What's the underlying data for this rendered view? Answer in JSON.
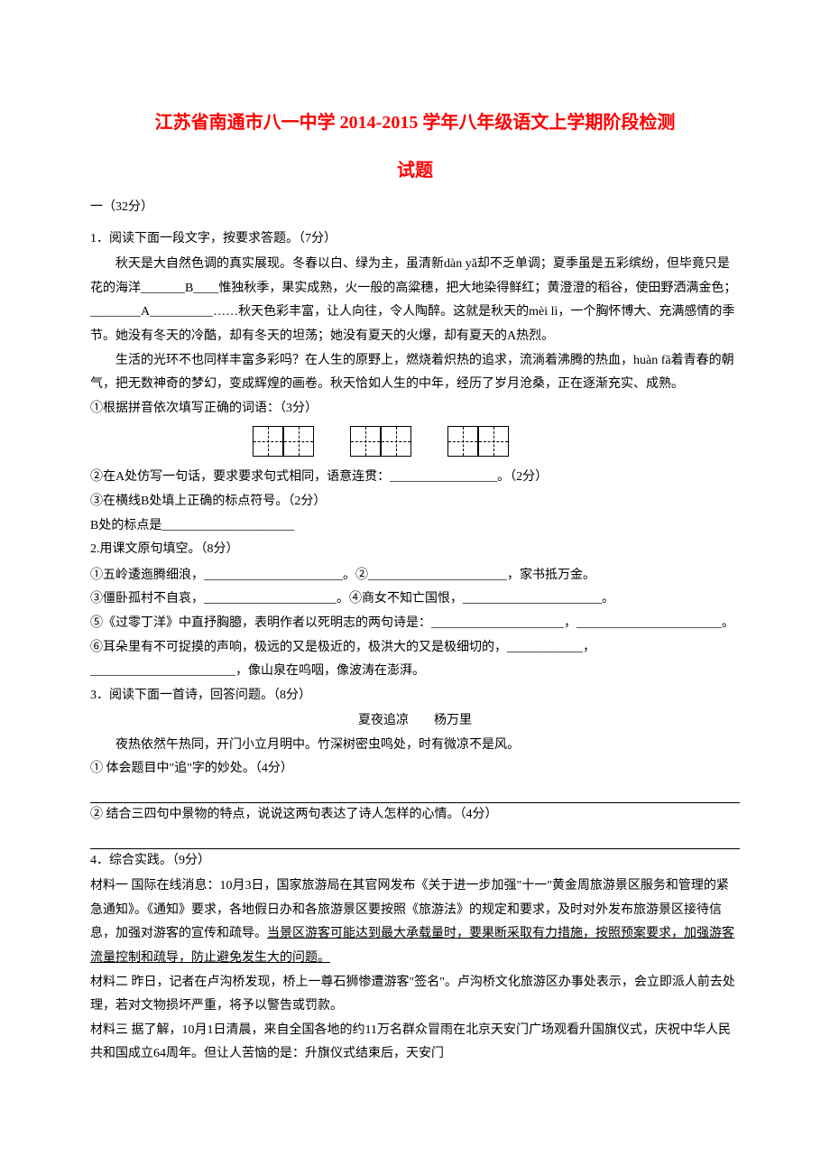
{
  "colors": {
    "title_color": "#ff0000",
    "text_color": "#000000",
    "background_color": "#ffffff"
  },
  "typography": {
    "title_fontsize": 20,
    "body_fontsize": 14,
    "line_height": 1.9,
    "font_family": "SimSun"
  },
  "title_line1": "江苏省南通市八一中学 2014-2015 学年八年级语文上学期阶段检测",
  "title_line2": "试题",
  "section1": {
    "header": "一（32分）",
    "q1": {
      "stem": "1．阅读下面一段文字，按要求答题。（7分）",
      "p1": "秋天是大自然色调的真实展现。冬春以白、绿为主，虽清新dàn yǎ却不乏单调；夏季虽是五彩缤纷，但毕竟只是花的海洋_______B____惟独秋季，果实成熟，火一般的高粱穗，把大地染得鲜红；黄澄澄的稻谷，使田野洒满金色；________A__________……秋天色彩丰富，让人向往，令人陶醉。这就是秋天的mèi lì，一个胸怀博大、充满感情的季节。她没有冬天的冷酷，却有冬天的坦荡；她没有夏天的火爆，却有夏天的A热烈。",
      "p2": "生活的光环不也同样丰富多彩吗？在人生的原野上，燃烧着炽热的追求，流淌着沸腾的热血，huàn fā着青春的朝气，把无数神奇的梦幻，变成辉煌的画卷。秋天恰如人生的中年，经历了岁月沧桑，正在逐渐充实、成熟。",
      "sub1": "①根据拼音依次填写正确的词语：（3分）",
      "grid_boxes": [
        2,
        2,
        2
      ],
      "sub2": "②在A处仿写一句话，要求要求句式相同，语意连贯：_________________。（2分）",
      "sub3": "③在横线B处填上正确的标点符号。（2分）",
      "sub3_line": "  B处的标点是_____________________"
    },
    "q2": {
      "stem": "2.用课文原句填空。（8分）",
      "line1": "①五岭逶迤腾细浪，______________________。②______________________，家书抵万金。",
      "line2": "③僵卧孤村不自哀，_____________________。④商女不知亡国恨，______________________。",
      "line3": "⑤《过零丁洋》中直抒胸臆，表明作者以死明志的两句诗是：_____________________，_______________________。",
      "line4": "⑥耳朵里有不可捉摸的声响，极远的又是极近的，极洪大的又是极细切的，____________，_______________________，像山泉在呜咽，像波涛在澎湃。"
    },
    "q3": {
      "stem": "3．阅读下面一首诗，回答问题。（8分）",
      "poem_title": "夏夜追凉　　杨万里",
      "poem_line": "夜热依然午热同，开门小立月明中。竹深树密虫鸣处，时有微凉不是风。",
      "sub1": "① 体会题目中\"追\"字的妙处。（4分）",
      "sub2": "② 结合三四句中景物的特点，说说这两句表达了诗人怎样的心情。（4分）"
    },
    "q4": {
      "stem": "4．综合实践。（9分）",
      "m1_label": "材料一    ",
      "m1_text": "国际在线消息：10月3日，国家旅游局在其官网发布《关于进一步加强\"十一\"黄金周旅游景区服务和管理的紧急通知》。《通知》要求，各地假日办和各旅游景区要按照《旅游法》的规定和要求，及时对外发布旅游景区接待信息，加强对游客的宣传和疏导。",
      "m1_underline": "当景区游客可能达到最大承载量时，要果断采取有力措施，按照预案要求，加强游客流量控制和疏导，防止避免发生大的问题。",
      "m2": "材料二    昨日，记者在卢沟桥发现，桥上一尊石狮惨遭游客\"签名\"。卢沟桥文化旅游区办事处表示，会立即派人前去处理，若对文物损坏严重，将予以警告或罚款。",
      "m3": "材料三    据了解，10月1日清晨，来自全国各地的约11万名群众冒雨在北京天安门广场观看升国旗仪式，庆祝中华人民共和国成立64周年。但让人苦恼的是：升旗仪式结束后，天安门"
    }
  }
}
